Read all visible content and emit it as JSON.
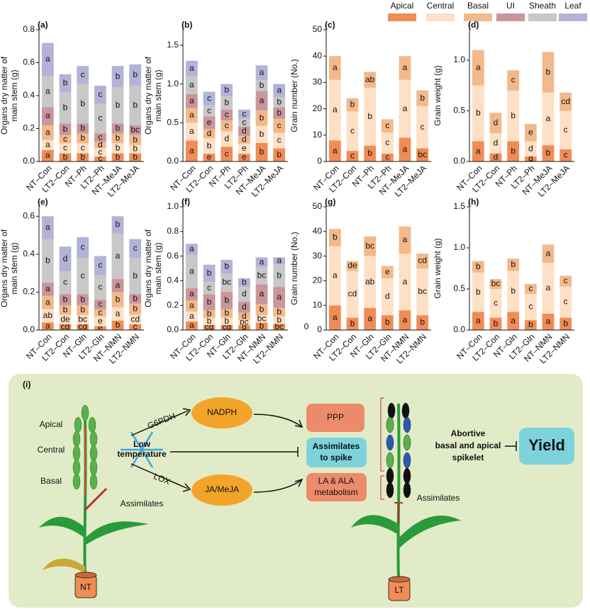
{
  "chart_data": [
    {
      "type": "bar",
      "stacked": true,
      "title": "(a)",
      "ylabel": [
        "Organs dry matter of",
        "main stem (g)"
      ],
      "categories": [
        "NT–Con",
        "LT2–Con",
        "NT–Ph",
        "LT2–Ph",
        "NT–MeJA",
        "LT2–MeJA"
      ],
      "ylim": [
        0,
        0.8
      ],
      "yticks": [
        {
          "value": 0,
          "label": "0.0"
        },
        0.2,
        0.4,
        0.6,
        0.8
      ],
      "series": [
        {
          "name": "Apical",
          "color": "#f08c55",
          "values": [
            0.07,
            0.05,
            0.05,
            0.03,
            0.05,
            0.05
          ],
          "letters": [
            "a",
            "b",
            "b",
            "c",
            "b",
            "b"
          ]
        },
        {
          "name": "Central",
          "color": "#fde0c5",
          "values": [
            0.06,
            0.06,
            0.06,
            0.05,
            0.06,
            0.05
          ],
          "letters": [
            "a",
            "c",
            "c",
            "c",
            "b",
            "b"
          ]
        },
        {
          "name": "Basal",
          "color": "#f3b98a",
          "values": [
            0.09,
            0.05,
            0.06,
            0.04,
            0.06,
            0.06
          ],
          "letters": [
            "a",
            "c",
            "b",
            "d",
            "b",
            "b"
          ]
        },
        {
          "name": "UI",
          "color": "#c9969c",
          "values": [
            0.11,
            0.07,
            0.06,
            0.05,
            0.06,
            0.06
          ],
          "letters": [
            "a",
            "b",
            "b",
            "c",
            "b",
            "bc"
          ]
        },
        {
          "name": "Sheath",
          "color": "#c8c8c8",
          "values": [
            0.19,
            0.19,
            0.24,
            0.18,
            0.22,
            0.24
          ],
          "letters": [
            "a",
            "b",
            "b",
            "c",
            "b",
            "b"
          ]
        },
        {
          "name": "Leaf",
          "color": "#b3b3d8",
          "values": [
            0.2,
            0.11,
            0.11,
            0.11,
            0.13,
            0.13
          ],
          "letters": [
            "a",
            "b",
            "c",
            "c",
            "b",
            "b"
          ]
        }
      ]
    },
    {
      "type": "bar",
      "stacked": true,
      "title": "(b)",
      "ylabel": [
        "Organs dry matter of",
        "main stem (g)"
      ],
      "categories": [
        "NT–Con",
        "LT2–Con",
        "NT–Ph",
        "LT2–Ph",
        "NT–MeJA",
        "LT2–MeJA"
      ],
      "ylim": [
        0,
        1.7
      ],
      "yticks": [
        {
          "value": 0,
          "label": "0.0"
        },
        0.5,
        {
          "value": 1,
          "label": "1.0"
        },
        1.5
      ],
      "series": [
        {
          "name": "Apical",
          "color": "#f08c55",
          "values": [
            0.27,
            0.1,
            0.19,
            0.1,
            0.24,
            0.17
          ],
          "letters": [
            "a",
            "e",
            "c",
            "e",
            "b",
            "b"
          ]
        },
        {
          "name": "Central",
          "color": "#fde0c5",
          "values": [
            0.23,
            0.2,
            0.2,
            0.13,
            0.22,
            0.2
          ],
          "letters": [
            "a",
            "b",
            "d",
            "e",
            "b",
            "c"
          ]
        },
        {
          "name": "Basal",
          "color": "#f3b98a",
          "values": [
            0.19,
            0.12,
            0.14,
            0.1,
            0.2,
            0.18
          ],
          "letters": [
            "a",
            "d",
            "c",
            "d",
            "b",
            "c"
          ]
        },
        {
          "name": "UI",
          "color": "#c9969c",
          "values": [
            0.18,
            0.16,
            0.14,
            0.12,
            0.25,
            0.15
          ],
          "letters": [
            "a",
            "e",
            "c",
            "d",
            "a",
            "b"
          ]
        },
        {
          "name": "Sheath",
          "color": "#c8c8c8",
          "values": [
            0.23,
            0.14,
            0.17,
            0.1,
            0.14,
            0.13
          ],
          "letters": [
            "a",
            "c",
            "b",
            "c",
            "b",
            "b"
          ]
        },
        {
          "name": "Leaf",
          "color": "#b3b3d8",
          "values": [
            0.2,
            0.18,
            0.16,
            0.12,
            0.19,
            0.17
          ],
          "letters": [
            "a",
            "c",
            "b",
            "c",
            "a",
            "a"
          ]
        }
      ]
    },
    {
      "type": "bar",
      "stacked": true,
      "title": "(c)",
      "ylabel": [
        "Grain number (No.)"
      ],
      "categories": [
        "NT–Con",
        "LT2–Con",
        "NT–Ph",
        "LT2–Ph",
        "NT–MeJA",
        "LT2–MeJA"
      ],
      "ylim": [
        0,
        50
      ],
      "yticks": [
        0,
        10,
        20,
        30,
        40,
        50
      ],
      "series": [
        {
          "name": "Apical",
          "color": "#f08c55",
          "values": [
            8,
            4,
            6,
            3,
            9,
            5
          ],
          "letters": [
            "a",
            "c",
            "b",
            "c",
            "a",
            "bc"
          ]
        },
        {
          "name": "Central",
          "color": "#fde0c5",
          "values": [
            23,
            15,
            22,
            8,
            22,
            16
          ],
          "letters": [
            "a",
            "c",
            "b",
            "c",
            "a",
            "c"
          ]
        },
        {
          "name": "Basal",
          "color": "#f3b98a",
          "values": [
            9,
            5,
            6,
            5,
            9,
            6
          ],
          "letters": [
            "a",
            "b",
            "ab",
            "c",
            "a",
            "b"
          ]
        }
      ]
    },
    {
      "type": "bar",
      "stacked": true,
      "title": "(d)",
      "ylabel": [
        "Grain weight (g)"
      ],
      "categories": [
        "NT–Con",
        "LT2–Con",
        "NT–Ph",
        "LT2–Ph",
        "NT–MeJA",
        "LT2–MeJA"
      ],
      "ylim": [
        0,
        1.3
      ],
      "yticks": [
        {
          "value": 0,
          "label": "0.0"
        },
        0.5,
        {
          "value": 1,
          "label": "1.0"
        }
      ],
      "series": [
        {
          "name": "Apical",
          "color": "#f08c55",
          "values": [
            0.2,
            0.08,
            0.2,
            0.05,
            0.16,
            0.12
          ],
          "letters": [
            "a",
            "d",
            "b",
            "d",
            "b",
            "c"
          ]
        },
        {
          "name": "Central",
          "color": "#fde0c5",
          "values": [
            0.55,
            0.2,
            0.5,
            0.15,
            0.52,
            0.38
          ],
          "letters": [
            "b",
            "d",
            "b",
            "d",
            "a",
            "c"
          ]
        },
        {
          "name": "Basal",
          "color": "#f3b98a",
          "values": [
            0.35,
            0.2,
            0.2,
            0.17,
            0.4,
            0.18
          ],
          "letters": [
            "a",
            "d",
            "c",
            "e",
            "b",
            "cd"
          ]
        }
      ]
    },
    {
      "type": "bar",
      "stacked": true,
      "title": "(e)",
      "ylabel": [
        "Organs dry matter of",
        "main stem (g)"
      ],
      "categories": [
        "NT–Con",
        "LT2–Con",
        "NT–Gln",
        "LT2–Gln",
        "NT–NMN",
        "LT2–NMN"
      ],
      "ylim": [
        0,
        0.65
      ],
      "yticks": [
        {
          "value": 0,
          "label": "0.0"
        },
        0.2,
        0.4,
        0.6
      ],
      "series": [
        {
          "name": "Apical",
          "color": "#f08c55",
          "values": [
            0.04,
            0.03,
            0.03,
            0.02,
            0.05,
            0.03
          ],
          "letters": [
            "a",
            "cd",
            "cd",
            "e",
            "b",
            "c"
          ]
        },
        {
          "name": "Central",
          "color": "#fde0c5",
          "values": [
            0.07,
            0.05,
            0.05,
            0.05,
            0.07,
            0.05
          ],
          "letters": [
            "ab",
            "de",
            "bc",
            "e",
            "a",
            "cd"
          ]
        },
        {
          "name": "Basal",
          "color": "#f3b98a",
          "values": [
            0.07,
            0.05,
            0.05,
            0.04,
            0.08,
            0.06
          ],
          "letters": [
            "a",
            "b",
            "b",
            "c",
            "b",
            "b"
          ]
        },
        {
          "name": "UI",
          "color": "#c9969c",
          "values": [
            0.07,
            0.06,
            0.06,
            0.05,
            0.07,
            0.05
          ],
          "letters": [
            "a",
            "b",
            "b",
            "c",
            "a",
            "b"
          ]
        },
        {
          "name": "Sheath",
          "color": "#c8c8c8",
          "values": [
            0.23,
            0.12,
            0.19,
            0.13,
            0.24,
            0.19
          ],
          "letters": [
            "b",
            "c",
            "c",
            "c",
            "a",
            "b"
          ]
        },
        {
          "name": "Leaf",
          "color": "#b3b3d8",
          "values": [
            0.12,
            0.13,
            0.11,
            0.1,
            0.09,
            0.1
          ],
          "letters": [
            "a",
            "d",
            "c",
            "c",
            "b",
            "c"
          ]
        }
      ]
    },
    {
      "type": "bar",
      "stacked": true,
      "title": "(f)",
      "ylabel": [
        "Organs dry matter of",
        "main stem (g)"
      ],
      "extra_label": "0",
      "categories": [
        "NT–Con",
        "LT2–Con",
        "NT–Gln",
        "LT2–Gln",
        "NT–NMN",
        "LT2–NMN"
      ],
      "ylim": [
        0,
        1.0
      ],
      "yticks": [
        {
          "value": 0,
          "label": "0.0"
        },
        0.2,
        0.4,
        0.6,
        0.8,
        {
          "value": 1,
          "label": "1.0"
        }
      ],
      "series": [
        {
          "name": "Apical",
          "color": "#f08c55",
          "values": [
            0.07,
            0.04,
            0.04,
            0.04,
            0.06,
            0.05
          ],
          "letters": [
            "a",
            "cd",
            "cd",
            "d",
            "b",
            "bc"
          ]
        },
        {
          "name": "Central",
          "color": "#fde0c5",
          "values": [
            0.08,
            0.06,
            0.06,
            0.04,
            0.06,
            0.06
          ],
          "letters": [
            "a",
            "b",
            "b",
            "bc",
            "bc",
            "b"
          ]
        },
        {
          "name": "Basal",
          "color": "#f3b98a",
          "values": [
            0.09,
            0.06,
            0.07,
            0.06,
            0.09,
            0.07
          ],
          "letters": [
            "a",
            "b",
            "b",
            "d",
            "b",
            "b"
          ]
        },
        {
          "name": "UI",
          "color": "#c9969c",
          "values": [
            0.1,
            0.13,
            0.14,
            0.09,
            0.16,
            0.17
          ],
          "letters": [
            "a",
            "b",
            "b",
            "d",
            "a",
            "a"
          ]
        },
        {
          "name": "Sheath",
          "color": "#c8c8c8",
          "values": [
            0.27,
            0.1,
            0.15,
            0.12,
            0.14,
            0.18
          ],
          "letters": [
            "a",
            "c",
            "bc",
            "d",
            "bc",
            "b"
          ]
        },
        {
          "name": "Leaf",
          "color": "#b3b3d8",
          "values": [
            0.09,
            0.14,
            0.11,
            0.07,
            0.08,
            0.06
          ],
          "letters": [
            "a",
            "b",
            "b",
            "b",
            "a",
            "a"
          ]
        }
      ]
    },
    {
      "type": "bar",
      "stacked": true,
      "title": "(g)",
      "ylabel": [
        "Grain number (No.)"
      ],
      "categories": [
        "NT–Con",
        "LT2–Con",
        "NT–Gln",
        "LT2–Gln",
        "NT–NMN",
        "LT2–NMN"
      ],
      "ylim": [
        0,
        50
      ],
      "yticks": [
        0,
        10,
        20,
        30,
        40,
        50
      ],
      "series": [
        {
          "name": "Apical",
          "color": "#f08c55",
          "values": [
            10,
            5,
            9,
            6,
            8,
            6
          ],
          "letters": [
            "a",
            "b",
            "a",
            "b",
            "a",
            "b"
          ]
        },
        {
          "name": "Central",
          "color": "#fde0c5",
          "values": [
            24,
            19,
            21,
            15,
            23,
            19
          ],
          "letters": [
            "a",
            "cd",
            "ab",
            "d",
            "a",
            "bc"
          ]
        },
        {
          "name": "Basal",
          "color": "#f3b98a",
          "values": [
            7,
            4,
            8,
            5,
            11,
            6
          ],
          "letters": [
            "b",
            "de",
            "bc",
            "e",
            "a",
            "cd"
          ]
        }
      ]
    },
    {
      "type": "bar",
      "stacked": true,
      "title": "(h)",
      "ylabel": [
        "Grain weight (g)"
      ],
      "categories": [
        "NT–Con",
        "LT2–Con",
        "NT–Gln",
        "LT2–Gln",
        "NT–NMN",
        "LT2–NMN"
      ],
      "ylim": [
        0,
        1.5
      ],
      "yticks": [
        {
          "value": 0,
          "label": "0.0"
        },
        0.5,
        {
          "value": 1,
          "label": "1.0"
        },
        1.5
      ],
      "series": [
        {
          "name": "Apical",
          "color": "#f08c55",
          "values": [
            0.22,
            0.15,
            0.22,
            0.12,
            0.2,
            0.15
          ],
          "letters": [
            "a",
            "b",
            "a",
            "b",
            "a",
            "b"
          ]
        },
        {
          "name": "Central",
          "color": "#fde0c5",
          "values": [
            0.48,
            0.35,
            0.5,
            0.32,
            0.62,
            0.38
          ],
          "letters": [
            "b",
            "c",
            "b",
            "c",
            "a",
            "c"
          ]
        },
        {
          "name": "Basal",
          "color": "#f3b98a",
          "values": [
            0.14,
            0.12,
            0.15,
            0.12,
            0.22,
            0.13
          ],
          "letters": [
            "b",
            "bc",
            "b",
            "c",
            "a",
            "c"
          ]
        }
      ]
    }
  ],
  "diagram": {
    "label": "(i)",
    "apical": "Apical",
    "central": "Central",
    "basal": "Basal",
    "assimilates_left": "Assimilates",
    "nt": "NT",
    "g6pdh": "G6PDH",
    "nadph": "NADPH",
    "low_temperature": [
      "Low",
      "temperature"
    ],
    "lox": "LOX",
    "jamaja": "JA/MeJA",
    "ppp": "PPP",
    "assimilates_to_spike": [
      "Assimilates",
      "to spike"
    ],
    "la_ala": [
      "LA & ALA",
      "metabolism"
    ],
    "abortive": [
      "Abortive",
      "basal and apical",
      "spikelet"
    ],
    "yield": "Yield",
    "assimilates_right": "Assimilates",
    "lt": "LT"
  }
}
